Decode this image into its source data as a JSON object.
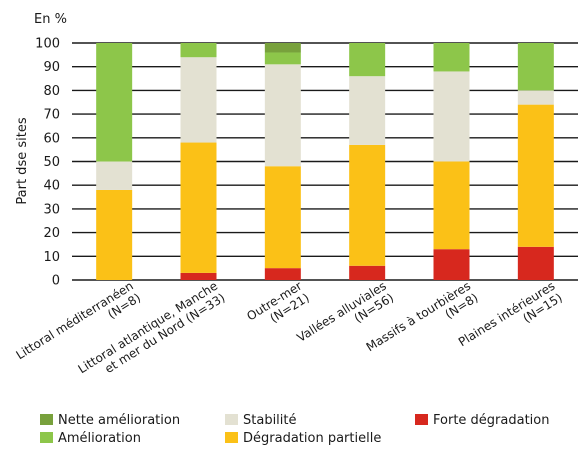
{
  "chart_data": {
    "type": "bar",
    "stacked": true,
    "unit_label": "En %",
    "ylabel": "Part dse sites",
    "ylim": [
      0,
      100
    ],
    "yticks": [
      0,
      10,
      20,
      30,
      40,
      50,
      60,
      70,
      80,
      90,
      100
    ],
    "grid": "y-major",
    "legend_position": "bottom",
    "categories": [
      [
        "Littoral méditerranéen",
        "(N=8)"
      ],
      [
        "Littoral atlantique, Manche",
        "et mer du Nord (N=33)"
      ],
      [
        "Outre-mer",
        "(N=21)"
      ],
      [
        "Vallées alluviales",
        "(N=56)"
      ],
      [
        "Massifs à tourbières",
        "(N=8)"
      ],
      [
        "Plaines intérieures",
        "(N=15)"
      ]
    ],
    "series": [
      {
        "name": "Forte dégradation",
        "color": "#d7281e",
        "values": [
          0,
          3,
          5,
          6,
          13,
          14
        ]
      },
      {
        "name": "Dégradation partielle",
        "color": "#fbc117",
        "values": [
          38,
          55,
          43,
          51,
          37,
          60
        ]
      },
      {
        "name": "Stabilité",
        "color": "#e3e1d2",
        "values": [
          12,
          36,
          43,
          29,
          38,
          6
        ]
      },
      {
        "name": "Amélioration",
        "color": "#8dc64a",
        "values": [
          50,
          6,
          5,
          14,
          12,
          20
        ]
      },
      {
        "name": "Nette amélioration",
        "color": "#78a13c",
        "values": [
          0,
          0,
          4,
          0,
          0,
          0
        ]
      }
    ],
    "legend_layout": [
      [
        "Nette amélioration",
        "Stabilité",
        "Forte dégradation"
      ],
      [
        "Amélioration",
        "Dégradation partielle"
      ]
    ]
  }
}
